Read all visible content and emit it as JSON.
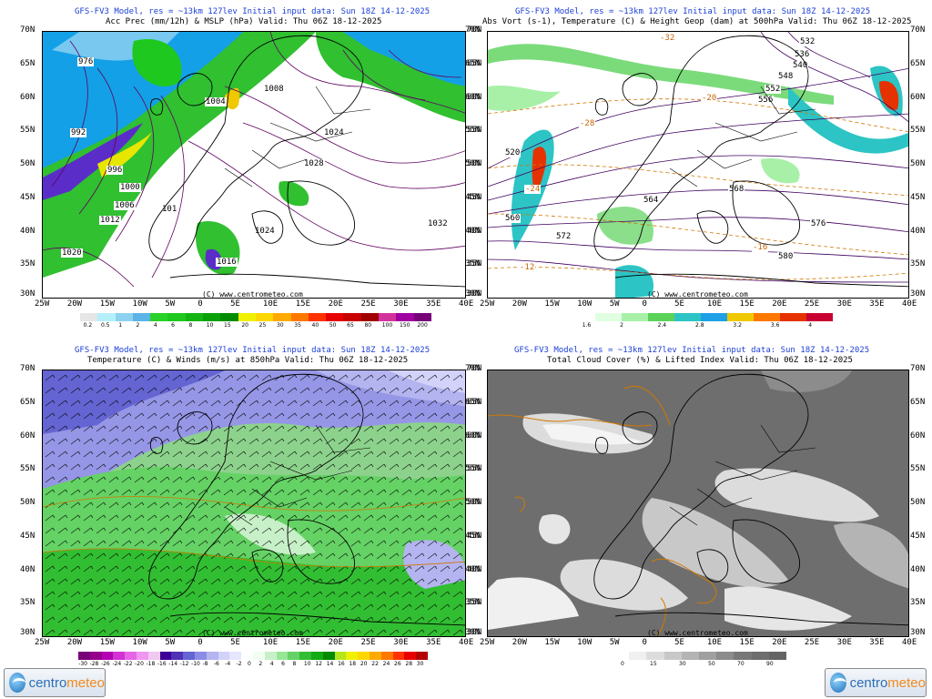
{
  "panels": [
    {
      "model_line": "GFS-FV3 Model, res = ~13km 127lev   Initial input data: Sun 18Z 14-12-2025",
      "title": "Acc Prec (mm/12h) & MSLP (hPa)  Valid: Thu 06Z 18-12-2025",
      "isobar_labels": [
        "976",
        "992",
        "996",
        "1000",
        "1004",
        "1006",
        "1008",
        "1012",
        "1016",
        "1020",
        "1024",
        "1028",
        "1032",
        "101",
        "1024"
      ],
      "colorbar_labels": [
        "0.2",
        "0.5",
        "1",
        "2",
        "4",
        "6",
        "8",
        "10",
        "15",
        "20",
        "25",
        "30",
        "35",
        "40",
        "50",
        "65",
        "80",
        "100",
        "150",
        "200"
      ],
      "colorbar_colors": [
        "#e6e6e6",
        "#b4f0fa",
        "#8cd2f0",
        "#5ab4e6",
        "#28d228",
        "#1ec81e",
        "#14b414",
        "#0aa00a",
        "#008c00",
        "#f0f000",
        "#ffd700",
        "#ffaa00",
        "#ff7800",
        "#ff3200",
        "#e60000",
        "#c80000",
        "#a00000",
        "#d2329b",
        "#a000a0",
        "#780078"
      ]
    },
    {
      "model_line": "GFS-FV3 Model, res = ~13km 127lev   Initial input data: Sun 18Z 14-12-2025",
      "title": "Abs Vort (s-1), Temperature (C) & Height Geop (dam) at 500hPa  Valid: Thu 06Z 18-12-2025",
      "height_labels": [
        "520",
        "532",
        "536",
        "540",
        "548",
        "552",
        "556",
        "560",
        "564",
        "568",
        "572",
        "576",
        "580"
      ],
      "temp_labels": [
        "-32",
        "-28",
        "-24",
        "-20",
        "-16",
        "-12"
      ],
      "colorbar_labels": [
        "1.6",
        "2",
        "2.4",
        "2.8",
        "3.2",
        "3.6",
        "4"
      ],
      "colorbar_colors": [
        "#ffffff",
        "#e0ffe0",
        "#a8f0a8",
        "#5ad25a",
        "#2cc4c4",
        "#1ea0e6",
        "#f0c800",
        "#ff7800",
        "#e63200",
        "#c80032"
      ]
    },
    {
      "model_line": "GFS-FV3 Model, res = ~13km 127lev   Initial input data: Sun 18Z 14-12-2025",
      "title": "Temperature (C) & Winds (m/s) at 850hPa  Valid: Thu 06Z 18-12-2025",
      "colorbar_labels": [
        "-30",
        "-28",
        "-26",
        "-24",
        "-22",
        "-20",
        "-18",
        "-16",
        "-14",
        "-12",
        "-10",
        "-8",
        "-6",
        "-4",
        "-2",
        "0",
        "2",
        "4",
        "6",
        "8",
        "10",
        "12",
        "14",
        "16",
        "18",
        "20",
        "22",
        "24",
        "26",
        "28",
        "30"
      ],
      "colorbar_colors": [
        "#780078",
        "#96008c",
        "#b400b4",
        "#d232d2",
        "#e664e6",
        "#f096f0",
        "#f0c8f0",
        "#3c0096",
        "#5032b4",
        "#6464d2",
        "#8c8ce6",
        "#b4b4f0",
        "#d2d2fa",
        "#e6e6ff",
        "#ffffff",
        "#f0fff0",
        "#c8f0c8",
        "#96e696",
        "#64d264",
        "#32be32",
        "#14aa14",
        "#008c00",
        "#b4e61e",
        "#f0f000",
        "#ffd700",
        "#ffaa00",
        "#ff7800",
        "#ff3200",
        "#e60000",
        "#b40000"
      ]
    },
    {
      "model_line": "GFS-FV3 Model, res = ~13km 127lev   Initial input data: Sun 18Z 14-12-2025",
      "title": "Total Cloud Cover (%) & Lifted Index  Valid: Thu 06Z 18-12-2025",
      "colorbar_labels": [
        "0",
        "15",
        "30",
        "50",
        "70",
        "90"
      ],
      "colorbar_colors": [
        "#ffffff",
        "#f0f0f0",
        "#dcdcdc",
        "#c8c8c8",
        "#b4b4b4",
        "#a0a0a0",
        "#8c8c8c",
        "#787878",
        "#6e6e6e",
        "#646464"
      ]
    }
  ],
  "lat_labels": [
    "70N",
    "65N",
    "60N",
    "55N",
    "50N",
    "45N",
    "40N",
    "35N",
    "30N"
  ],
  "lon_labels": [
    "25W",
    "20W",
    "15W",
    "10W",
    "5W",
    "0",
    "5E",
    "10E",
    "15E",
    "20E",
    "25E",
    "30E",
    "35E",
    "40E"
  ],
  "credit": "(C) www.centrometeo.com",
  "logo": {
    "part1": "centro",
    "part2": "meteo"
  }
}
